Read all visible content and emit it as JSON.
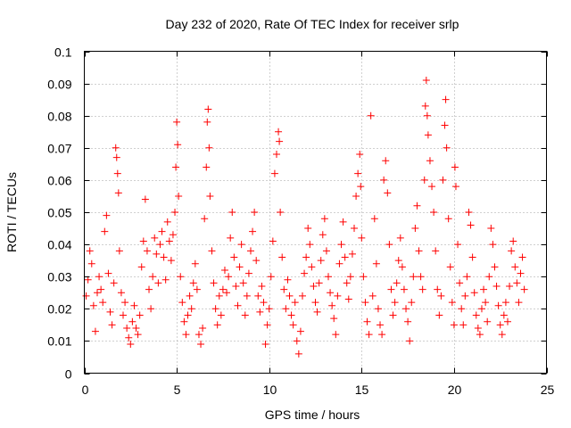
{
  "chart_data": {
    "type": "scatter",
    "title": "Day 232 of 2020, Rate Of TEC Index for receiver srlp",
    "xlabel": "GPS time / hours",
    "ylabel": "ROTI / TECUs",
    "xlim": [
      0,
      25
    ],
    "ylim": [
      0,
      0.1
    ],
    "xticks": [
      0,
      5,
      10,
      15,
      20,
      25
    ],
    "yticks": [
      0,
      0.01,
      0.02,
      0.03,
      0.04,
      0.05,
      0.06,
      0.07,
      0.08,
      0.09,
      0.1
    ],
    "grid": true,
    "marker": "plus",
    "colors": {
      "points": "#ff0000",
      "grid": "#a0a0a0",
      "frame": "#000000"
    },
    "series": [
      {
        "points": [
          [
            0.1,
            0.024
          ],
          [
            0.2,
            0.029
          ],
          [
            0.3,
            0.038
          ],
          [
            0.4,
            0.034
          ],
          [
            0.5,
            0.021
          ],
          [
            0.6,
            0.013
          ],
          [
            0.7,
            0.025
          ],
          [
            0.8,
            0.03
          ],
          [
            0.9,
            0.026
          ],
          [
            1.0,
            0.022
          ],
          [
            1.1,
            0.044
          ],
          [
            1.2,
            0.049
          ],
          [
            1.3,
            0.031
          ],
          [
            1.4,
            0.019
          ],
          [
            1.5,
            0.015
          ],
          [
            1.6,
            0.028
          ],
          [
            1.7,
            0.07
          ],
          [
            1.75,
            0.067
          ],
          [
            1.8,
            0.062
          ],
          [
            1.85,
            0.056
          ],
          [
            1.9,
            0.038
          ],
          [
            2.0,
            0.025
          ],
          [
            2.1,
            0.018
          ],
          [
            2.2,
            0.022
          ],
          [
            2.3,
            0.014
          ],
          [
            2.4,
            0.011
          ],
          [
            2.5,
            0.009
          ],
          [
            2.6,
            0.016
          ],
          [
            2.7,
            0.021
          ],
          [
            2.8,
            0.014
          ],
          [
            2.9,
            0.012
          ],
          [
            3.0,
            0.018
          ],
          [
            3.1,
            0.033
          ],
          [
            3.2,
            0.041
          ],
          [
            3.3,
            0.054
          ],
          [
            3.4,
            0.038
          ],
          [
            3.5,
            0.026
          ],
          [
            3.6,
            0.02
          ],
          [
            3.7,
            0.03
          ],
          [
            3.8,
            0.042
          ],
          [
            3.9,
            0.037
          ],
          [
            4.0,
            0.028
          ],
          [
            4.1,
            0.04
          ],
          [
            4.2,
            0.044
          ],
          [
            4.3,
            0.036
          ],
          [
            4.4,
            0.029
          ],
          [
            4.5,
            0.047
          ],
          [
            4.6,
            0.041
          ],
          [
            4.7,
            0.035
          ],
          [
            4.8,
            0.043
          ],
          [
            4.9,
            0.05
          ],
          [
            4.95,
            0.064
          ],
          [
            5.0,
            0.078
          ],
          [
            5.05,
            0.071
          ],
          [
            5.1,
            0.055
          ],
          [
            5.2,
            0.03
          ],
          [
            5.3,
            0.022
          ],
          [
            5.4,
            0.016
          ],
          [
            5.5,
            0.012
          ],
          [
            5.6,
            0.018
          ],
          [
            5.7,
            0.024
          ],
          [
            5.8,
            0.02
          ],
          [
            5.9,
            0.028
          ],
          [
            6.0,
            0.034
          ],
          [
            6.1,
            0.026
          ],
          [
            6.2,
            0.012
          ],
          [
            6.3,
            0.009
          ],
          [
            6.4,
            0.014
          ],
          [
            6.5,
            0.048
          ],
          [
            6.6,
            0.064
          ],
          [
            6.65,
            0.078
          ],
          [
            6.7,
            0.082
          ],
          [
            6.75,
            0.07
          ],
          [
            6.8,
            0.055
          ],
          [
            6.9,
            0.038
          ],
          [
            7.0,
            0.028
          ],
          [
            7.1,
            0.02
          ],
          [
            7.2,
            0.015
          ],
          [
            7.3,
            0.024
          ],
          [
            7.4,
            0.018
          ],
          [
            7.5,
            0.026
          ],
          [
            7.6,
            0.032
          ],
          [
            7.7,
            0.025
          ],
          [
            7.8,
            0.03
          ],
          [
            7.9,
            0.042
          ],
          [
            8.0,
            0.05
          ],
          [
            8.1,
            0.036
          ],
          [
            8.2,
            0.027
          ],
          [
            8.3,
            0.021
          ],
          [
            8.4,
            0.033
          ],
          [
            8.5,
            0.04
          ],
          [
            8.6,
            0.028
          ],
          [
            8.7,
            0.018
          ],
          [
            8.8,
            0.024
          ],
          [
            8.9,
            0.031
          ],
          [
            9.0,
            0.038
          ],
          [
            9.1,
            0.044
          ],
          [
            9.2,
            0.05
          ],
          [
            9.3,
            0.035
          ],
          [
            9.4,
            0.024
          ],
          [
            9.5,
            0.019
          ],
          [
            9.6,
            0.027
          ],
          [
            9.7,
            0.022
          ],
          [
            9.8,
            0.009
          ],
          [
            9.9,
            0.015
          ],
          [
            10.0,
            0.02
          ],
          [
            10.1,
            0.03
          ],
          [
            10.2,
            0.041
          ],
          [
            10.3,
            0.062
          ],
          [
            10.4,
            0.068
          ],
          [
            10.5,
            0.075
          ],
          [
            10.55,
            0.072
          ],
          [
            10.6,
            0.05
          ],
          [
            10.7,
            0.036
          ],
          [
            10.8,
            0.026
          ],
          [
            10.9,
            0.02
          ],
          [
            11.0,
            0.029
          ],
          [
            11.1,
            0.024
          ],
          [
            11.2,
            0.018
          ],
          [
            11.3,
            0.015
          ],
          [
            11.4,
            0.022
          ],
          [
            11.5,
            0.01
          ],
          [
            11.6,
            0.006
          ],
          [
            11.7,
            0.013
          ],
          [
            11.8,
            0.024
          ],
          [
            11.9,
            0.031
          ],
          [
            12.0,
            0.036
          ],
          [
            12.1,
            0.045
          ],
          [
            12.2,
            0.04
          ],
          [
            12.3,
            0.033
          ],
          [
            12.4,
            0.027
          ],
          [
            12.5,
            0.022
          ],
          [
            12.6,
            0.019
          ],
          [
            12.7,
            0.028
          ],
          [
            12.8,
            0.035
          ],
          [
            12.9,
            0.043
          ],
          [
            13.0,
            0.048
          ],
          [
            13.1,
            0.038
          ],
          [
            13.2,
            0.03
          ],
          [
            13.3,
            0.025
          ],
          [
            13.4,
            0.021
          ],
          [
            13.5,
            0.017
          ],
          [
            13.6,
            0.012
          ],
          [
            13.7,
            0.024
          ],
          [
            13.8,
            0.034
          ],
          [
            13.9,
            0.04
          ],
          [
            14.0,
            0.047
          ],
          [
            14.1,
            0.036
          ],
          [
            14.2,
            0.028
          ],
          [
            14.3,
            0.023
          ],
          [
            14.4,
            0.03
          ],
          [
            14.5,
            0.037
          ],
          [
            14.6,
            0.045
          ],
          [
            14.7,
            0.055
          ],
          [
            14.8,
            0.062
          ],
          [
            14.9,
            0.068
          ],
          [
            14.95,
            0.058
          ],
          [
            15.0,
            0.042
          ],
          [
            15.1,
            0.03
          ],
          [
            15.2,
            0.022
          ],
          [
            15.3,
            0.016
          ],
          [
            15.4,
            0.012
          ],
          [
            15.5,
            0.08
          ],
          [
            15.6,
            0.024
          ],
          [
            15.7,
            0.048
          ],
          [
            15.8,
            0.034
          ],
          [
            15.9,
            0.02
          ],
          [
            16.0,
            0.015
          ],
          [
            16.1,
            0.012
          ],
          [
            16.2,
            0.06
          ],
          [
            16.3,
            0.066
          ],
          [
            16.4,
            0.056
          ],
          [
            16.5,
            0.04
          ],
          [
            16.6,
            0.026
          ],
          [
            16.7,
            0.018
          ],
          [
            16.8,
            0.022
          ],
          [
            16.9,
            0.028
          ],
          [
            17.0,
            0.035
          ],
          [
            17.1,
            0.042
          ],
          [
            17.2,
            0.033
          ],
          [
            17.3,
            0.026
          ],
          [
            17.4,
            0.02
          ],
          [
            17.5,
            0.016
          ],
          [
            17.6,
            0.01
          ],
          [
            17.7,
            0.022
          ],
          [
            17.8,
            0.03
          ],
          [
            17.9,
            0.045
          ],
          [
            18.0,
            0.052
          ],
          [
            18.1,
            0.038
          ],
          [
            18.2,
            0.03
          ],
          [
            18.3,
            0.026
          ],
          [
            18.4,
            0.06
          ],
          [
            18.45,
            0.083
          ],
          [
            18.5,
            0.091
          ],
          [
            18.55,
            0.08
          ],
          [
            18.6,
            0.074
          ],
          [
            18.7,
            0.066
          ],
          [
            18.8,
            0.058
          ],
          [
            18.9,
            0.05
          ],
          [
            19.0,
            0.038
          ],
          [
            19.1,
            0.026
          ],
          [
            19.2,
            0.018
          ],
          [
            19.3,
            0.024
          ],
          [
            19.4,
            0.06
          ],
          [
            19.5,
            0.077
          ],
          [
            19.55,
            0.085
          ],
          [
            19.6,
            0.07
          ],
          [
            19.7,
            0.048
          ],
          [
            19.8,
            0.033
          ],
          [
            19.9,
            0.022
          ],
          [
            20.0,
            0.015
          ],
          [
            20.05,
            0.064
          ],
          [
            20.1,
            0.058
          ],
          [
            20.2,
            0.04
          ],
          [
            20.3,
            0.028
          ],
          [
            20.4,
            0.02
          ],
          [
            20.5,
            0.015
          ],
          [
            20.6,
            0.024
          ],
          [
            20.7,
            0.03
          ],
          [
            20.8,
            0.05
          ],
          [
            20.9,
            0.046
          ],
          [
            21.0,
            0.036
          ],
          [
            21.1,
            0.025
          ],
          [
            21.2,
            0.018
          ],
          [
            21.3,
            0.014
          ],
          [
            21.4,
            0.012
          ],
          [
            21.5,
            0.02
          ],
          [
            21.6,
            0.026
          ],
          [
            21.7,
            0.022
          ],
          [
            21.8,
            0.016
          ],
          [
            21.9,
            0.03
          ],
          [
            22.0,
            0.045
          ],
          [
            22.1,
            0.04
          ],
          [
            22.2,
            0.033
          ],
          [
            22.3,
            0.027
          ],
          [
            22.4,
            0.021
          ],
          [
            22.5,
            0.015
          ],
          [
            22.6,
            0.012
          ],
          [
            22.7,
            0.018
          ],
          [
            22.8,
            0.022
          ],
          [
            22.9,
            0.016
          ],
          [
            23.0,
            0.027
          ],
          [
            23.1,
            0.038
          ],
          [
            23.2,
            0.041
          ],
          [
            23.3,
            0.033
          ],
          [
            23.4,
            0.028
          ],
          [
            23.5,
            0.022
          ],
          [
            23.6,
            0.031
          ],
          [
            23.7,
            0.036
          ],
          [
            23.8,
            0.026
          ]
        ]
      }
    ]
  }
}
